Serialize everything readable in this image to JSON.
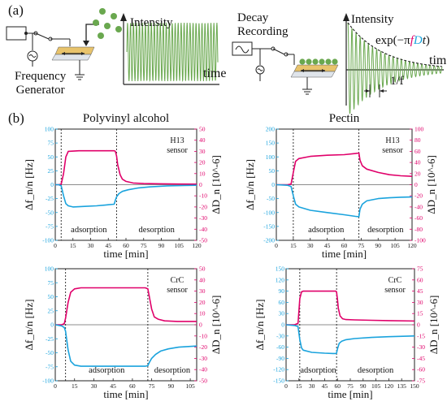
{
  "panel_a": {
    "label": "(a)",
    "freq_gen_label_1": "Frequency",
    "freq_gen_label_2": "Generator",
    "intensity_label": "Intensity",
    "time_label": "time",
    "decay_label_1": "Decay",
    "decay_label_2": "Recording",
    "decay_intensity_label": "Intensity",
    "decay_time_label": "tim",
    "exp_prefix": "exp(−π",
    "exp_f": "f",
    "exp_D": "D",
    "exp_t": "t",
    "exp_close": ")",
    "period_label": "1/f",
    "colors": {
      "wave": "#6aa84f",
      "dots": "#6aa84f",
      "electrode": "#e8c36b",
      "magenta": "#e0006a"
    }
  },
  "panel_b": {
    "label": "(b)"
  },
  "chart_data": [
    {
      "type": "line",
      "title": "Polyvinyl alcohol",
      "sensor_1": "H13",
      "sensor_2": "sensor",
      "xlabel": "time [min]",
      "ylabel_left": "Δf_n/n [Hz]",
      "ylabel_right": "ΔD_n [10^-6]",
      "xlim": [
        0,
        120
      ],
      "ylim_left": [
        -100,
        100
      ],
      "ylim_right": [
        -50,
        50
      ],
      "x_ticks": [
        "0",
        "15",
        "30",
        "45",
        "60",
        "75",
        "90",
        "105",
        "120"
      ],
      "y_left_ticks": [
        "100",
        "75",
        "50",
        "25",
        "0",
        "-25",
        "-50",
        "-75",
        "-100"
      ],
      "y_right_ticks": [
        "50",
        "40",
        "30",
        "20",
        "10",
        "0",
        "-10",
        "-20",
        "-30",
        "-40",
        "-50"
      ],
      "phase_lines": [
        5,
        52
      ],
      "annotations": [
        "adsorption",
        "desorption"
      ],
      "series": [
        {
          "axis": "right",
          "color": "#e0006a",
          "x": [
            0,
            3,
            5,
            7,
            9,
            11,
            20,
            30,
            40,
            50,
            51,
            52,
            53,
            55,
            57,
            60,
            66,
            75,
            90,
            105,
            120
          ],
          "values": [
            0,
            0,
            0.5,
            10,
            25,
            30,
            30.5,
            30.5,
            30.5,
            30.5,
            30,
            26,
            18,
            9,
            5,
            3,
            1.5,
            1,
            0.8,
            0.6,
            0.5
          ]
        },
        {
          "axis": "left",
          "color": "#1aa3dd",
          "x": [
            0,
            3,
            5,
            7,
            9,
            11,
            15,
            25,
            35,
            45,
            50,
            51,
            52,
            54,
            57,
            62,
            70,
            80,
            95,
            110,
            120
          ],
          "values": [
            0,
            0,
            -2,
            -20,
            -34,
            -38,
            -40,
            -39,
            -38,
            -36,
            -35,
            -28,
            -22,
            -16,
            -12,
            -9,
            -6,
            -4,
            -2,
            -1.5,
            -1
          ]
        }
      ]
    },
    {
      "type": "line",
      "title": "Pectin",
      "sensor_1": "H13",
      "sensor_2": "sensor",
      "xlabel": "time [min]",
      "ylabel_left": "Δf_n/n [Hz]",
      "ylabel_right": "ΔD_n [10^-6]",
      "xlim": [
        0,
        120
      ],
      "ylim_left": [
        -200,
        200
      ],
      "ylim_right": [
        -100,
        100
      ],
      "x_ticks": [
        "0",
        "15",
        "30",
        "45",
        "60",
        "75",
        "90",
        "105",
        "120"
      ],
      "y_left_ticks": [
        "200",
        "150",
        "100",
        "50",
        "0",
        "-50",
        "-100",
        "-150",
        "-200"
      ],
      "y_right_ticks": [
        "100",
        "80",
        "60",
        "40",
        "20",
        "0",
        "-20",
        "-40",
        "-60",
        "-80",
        "-100"
      ],
      "phase_lines": [
        15,
        73
      ],
      "annotations": [
        "adsorption",
        "desorption"
      ],
      "series": [
        {
          "axis": "right",
          "color": "#e0006a",
          "x": [
            0,
            10,
            13,
            15,
            17,
            20,
            30,
            45,
            60,
            70,
            73,
            74,
            76,
            80,
            90,
            100,
            110,
            120
          ],
          "values": [
            0,
            0,
            1,
            22,
            42,
            47,
            51,
            53,
            54,
            56,
            57,
            44,
            34,
            28,
            22,
            18,
            16,
            15
          ]
        },
        {
          "axis": "left",
          "color": "#1aa3dd",
          "x": [
            0,
            10,
            13,
            15,
            17,
            20,
            30,
            45,
            60,
            70,
            73,
            74,
            76,
            80,
            90,
            100,
            110,
            120
          ],
          "values": [
            0,
            -2,
            -6,
            -40,
            -70,
            -80,
            -92,
            -100,
            -108,
            -114,
            -115,
            -88,
            -70,
            -58,
            -50,
            -47,
            -45,
            -44
          ]
        }
      ]
    },
    {
      "type": "line",
      "title": "",
      "sensor_1": "CrC",
      "sensor_2": "sensor",
      "xlabel": "time [min]",
      "ylabel_left": "Δf_n/n [Hz]",
      "ylabel_right": "ΔD_n [10^-6]",
      "xlim": [
        0,
        110
      ],
      "ylim_left": [
        -100,
        100
      ],
      "ylim_right": [
        -50,
        50
      ],
      "x_ticks": [
        "0",
        "15",
        "30",
        "45",
        "60",
        "75",
        "90",
        "105"
      ],
      "y_left_ticks": [
        "100",
        "75",
        "50",
        "25",
        "0",
        "-25",
        "-50",
        "-75",
        "-100"
      ],
      "y_right_ticks": [
        "50",
        "40",
        "30",
        "20",
        "10",
        "0",
        "-10",
        "-20",
        "-30",
        "-40",
        "-50"
      ],
      "phase_lines": [
        8,
        72
      ],
      "annotations": [
        "adsorption",
        "desorption"
      ],
      "series": [
        {
          "axis": "right",
          "color": "#e0006a",
          "x": [
            0,
            5,
            7,
            8,
            10,
            12,
            15,
            20,
            30,
            45,
            60,
            70,
            72,
            73,
            75,
            77,
            80,
            85,
            95,
            110
          ],
          "values": [
            0,
            0,
            1,
            6,
            20,
            29,
            32,
            33,
            33,
            33,
            33,
            33,
            32,
            26,
            14,
            7,
            5,
            3.5,
            3,
            3
          ]
        },
        {
          "axis": "left",
          "color": "#1aa3dd",
          "x": [
            0,
            5,
            7,
            8,
            10,
            12,
            15,
            20,
            30,
            45,
            60,
            70,
            72,
            73,
            75,
            78,
            82,
            88,
            96,
            110
          ],
          "values": [
            0,
            -2,
            -5,
            -12,
            -45,
            -65,
            -72,
            -74,
            -74,
            -74,
            -74,
            -74,
            -73,
            -68,
            -60,
            -53,
            -47,
            -43,
            -40,
            -38
          ]
        }
      ]
    },
    {
      "type": "line",
      "title": "",
      "sensor_1": "CrC",
      "sensor_2": "sensor",
      "xlabel": "time [min]",
      "ylabel_left": "Δf_n/n [Hz]",
      "ylabel_right": "ΔD_n [10^-6]",
      "xlim": [
        0,
        150
      ],
      "ylim_left": [
        -150,
        150
      ],
      "ylim_right": [
        -75,
        75
      ],
      "x_ticks": [
        "0",
        "15",
        "30",
        "45",
        "60",
        "75",
        "90",
        "105",
        "120",
        "135",
        "150"
      ],
      "y_left_ticks": [
        "150",
        "120",
        "90",
        "60",
        "30",
        "0",
        "-30",
        "-60",
        "-90",
        "-120",
        "-150"
      ],
      "y_right_ticks": [
        "75",
        "60",
        "45",
        "30",
        "15",
        "0",
        "-15",
        "-30",
        "-45",
        "-60",
        "-75"
      ],
      "phase_lines": [
        16,
        59
      ],
      "annotations": [
        "adsorption",
        "desorption"
      ],
      "series": [
        {
          "axis": "right",
          "color": "#e0006a",
          "x": [
            0,
            10,
            14,
            16,
            18,
            20,
            30,
            45,
            55,
            58,
            59,
            60,
            61,
            63,
            66,
            70,
            80,
            100,
            120,
            150
          ],
          "values": [
            0,
            0,
            2,
            35,
            44,
            45,
            45,
            45,
            45,
            45,
            44,
            34,
            22,
            12,
            8,
            7,
            6.5,
            6,
            5.5,
            5
          ]
        },
        {
          "axis": "left",
          "color": "#1aa3dd",
          "x": [
            0,
            10,
            14,
            16,
            18,
            20,
            30,
            45,
            55,
            58,
            59,
            60,
            62,
            65,
            70,
            80,
            100,
            120,
            150
          ],
          "values": [
            0,
            -2,
            -5,
            -40,
            -62,
            -68,
            -74,
            -76,
            -77,
            -77,
            -76,
            -65,
            -50,
            -44,
            -40,
            -37,
            -34,
            -32,
            -30
          ]
        }
      ]
    }
  ]
}
